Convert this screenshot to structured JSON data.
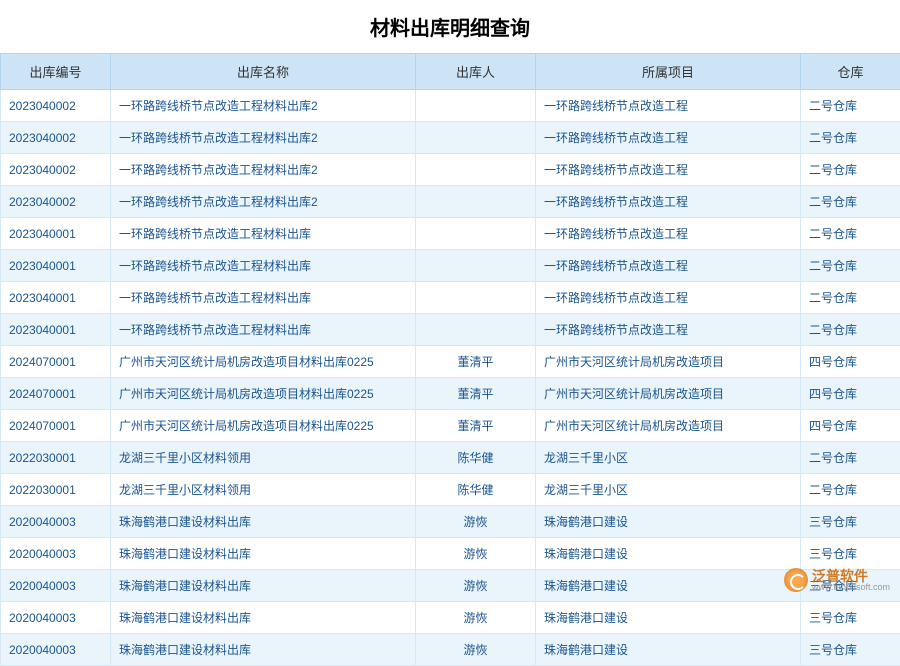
{
  "title": "材料出库明细查询",
  "columns": [
    "出库编号",
    "出库名称",
    "出库人",
    "所属项目",
    "仓库"
  ],
  "rows": [
    [
      "2023040002",
      "一环路跨线桥节点改造工程材料出库2",
      "",
      "一环路跨线桥节点改造工程",
      "二号仓库"
    ],
    [
      "2023040002",
      "一环路跨线桥节点改造工程材料出库2",
      "",
      "一环路跨线桥节点改造工程",
      "二号仓库"
    ],
    [
      "2023040002",
      "一环路跨线桥节点改造工程材料出库2",
      "",
      "一环路跨线桥节点改造工程",
      "二号仓库"
    ],
    [
      "2023040002",
      "一环路跨线桥节点改造工程材料出库2",
      "",
      "一环路跨线桥节点改造工程",
      "二号仓库"
    ],
    [
      "2023040001",
      "一环路跨线桥节点改造工程材料出库",
      "",
      "一环路跨线桥节点改造工程",
      "二号仓库"
    ],
    [
      "2023040001",
      "一环路跨线桥节点改造工程材料出库",
      "",
      "一环路跨线桥节点改造工程",
      "二号仓库"
    ],
    [
      "2023040001",
      "一环路跨线桥节点改造工程材料出库",
      "",
      "一环路跨线桥节点改造工程",
      "二号仓库"
    ],
    [
      "2023040001",
      "一环路跨线桥节点改造工程材料出库",
      "",
      "一环路跨线桥节点改造工程",
      "二号仓库"
    ],
    [
      "2024070001",
      "广州市天河区统计局机房改造项目材料出库0225",
      "董清平",
      "广州市天河区统计局机房改造项目",
      "四号仓库"
    ],
    [
      "2024070001",
      "广州市天河区统计局机房改造项目材料出库0225",
      "董清平",
      "广州市天河区统计局机房改造项目",
      "四号仓库"
    ],
    [
      "2024070001",
      "广州市天河区统计局机房改造项目材料出库0225",
      "董清平",
      "广州市天河区统计局机房改造项目",
      "四号仓库"
    ],
    [
      "2022030001",
      "龙湖三千里小区材料领用",
      "陈华健",
      "龙湖三千里小区",
      "二号仓库"
    ],
    [
      "2022030001",
      "龙湖三千里小区材料领用",
      "陈华健",
      "龙湖三千里小区",
      "二号仓库"
    ],
    [
      "2020040003",
      "珠海鹤港口建设材料出库",
      "游恢",
      "珠海鹤港口建设",
      "三号仓库"
    ],
    [
      "2020040003",
      "珠海鹤港口建设材料出库",
      "游恢",
      "珠海鹤港口建设",
      "三号仓库"
    ],
    [
      "2020040003",
      "珠海鹤港口建设材料出库",
      "游恢",
      "珠海鹤港口建设",
      "三号仓库"
    ],
    [
      "2020040003",
      "珠海鹤港口建设材料出库",
      "游恢",
      "珠海鹤港口建设",
      "三号仓库"
    ],
    [
      "2020040003",
      "珠海鹤港口建设材料出库",
      "游恢",
      "珠海鹤港口建设",
      "三号仓库"
    ]
  ],
  "watermark": {
    "cn": "泛普软件",
    "url": "www.fanpusoft.com"
  },
  "styles": {
    "header_bg": "#cce4f6",
    "header_border": "#b0d4ed",
    "cell_border": "#d4e8f5",
    "cell_text": "#1a5490",
    "row_even_bg": "#eaf4fb",
    "row_odd_bg": "#ffffff",
    "title_fontsize": 20,
    "header_fontsize": 13,
    "cell_fontsize": 12,
    "watermark_color": "#cc6600"
  }
}
